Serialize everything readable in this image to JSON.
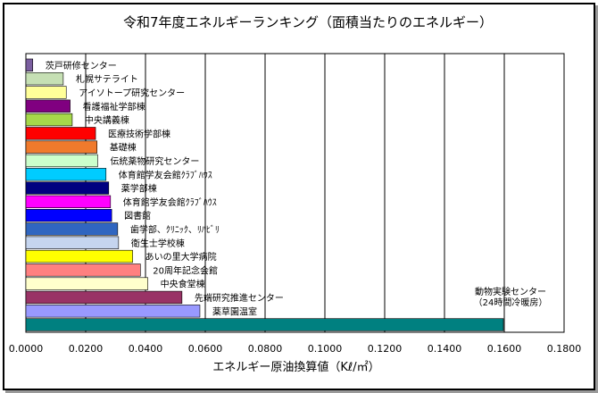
{
  "chart_data": {
    "type": "bar",
    "orientation": "horizontal",
    "title": "令和7年度エネルギーランキング（面積当たりのエネルギー）",
    "xlabel": "エネルギー原油換算値（Kℓ/㎡）",
    "ylabel": "",
    "xlim": [
      0,
      0.18
    ],
    "x_ticks": [
      "0.0000",
      "0.0200",
      "0.0400",
      "0.0600",
      "0.0800",
      "0.1000",
      "0.1200",
      "0.1400",
      "0.1600",
      "0.1800"
    ],
    "grid": "vertical",
    "legend": "none",
    "bars": [
      {
        "label": "茨戸研修センター",
        "value": 0.0023,
        "color": "#7b5fa0"
      },
      {
        "label": "札幌サテライト",
        "value": 0.0125,
        "color": "#c6e0b4"
      },
      {
        "label": "アイソトープ研究センター",
        "value": 0.0135,
        "color": "#ffff99"
      },
      {
        "label": "看護福祉学部棟",
        "value": 0.0148,
        "color": "#800080"
      },
      {
        "label": "中央講義棟",
        "value": 0.0155,
        "color": "#a6d84a"
      },
      {
        "label": "医療技術学部棟",
        "value": 0.0233,
        "color": "#ff0000"
      },
      {
        "label": "基礎棟",
        "value": 0.0238,
        "color": "#f07a2c"
      },
      {
        "label": "伝統薬物研究センター",
        "value": 0.024,
        "color": "#ccffcc"
      },
      {
        "label": "体育館学友会館ｸﾗﾌﾞﾊｳｽ",
        "value": 0.0268,
        "color": "#00ccff"
      },
      {
        "label": "薬学部棟",
        "value": 0.0277,
        "color": "#000080"
      },
      {
        "label": "体育館学友会館ｸﾗﾌﾞﾊｳｽ",
        "value": 0.0283,
        "color": "#ff00ff"
      },
      {
        "label": "図書館",
        "value": 0.0287,
        "color": "#0000ff"
      },
      {
        "label": "歯学部、ｸﾘﾆｯｸ、ﾘﾊﾋﾞﾘ",
        "value": 0.0307,
        "color": "#3066c0"
      },
      {
        "label": "衛生士学校棟",
        "value": 0.031,
        "color": "#c5d5ef"
      },
      {
        "label": "あいの里大学病院",
        "value": 0.0357,
        "color": "#ffff00"
      },
      {
        "label": "20周年記念会館",
        "value": 0.0383,
        "color": "#ff8080"
      },
      {
        "label": "中央食堂棟",
        "value": 0.0408,
        "color": "#ffffcc"
      },
      {
        "label": "先端研究推進センター",
        "value": 0.0522,
        "color": "#993366"
      },
      {
        "label": "薬草園温室",
        "value": 0.0582,
        "color": "#9999ff"
      },
      {
        "label": "",
        "value": 0.1597,
        "color": "#008080"
      }
    ],
    "annotations": [
      "動物実験センター",
      "（24時間冷暖房）"
    ]
  }
}
